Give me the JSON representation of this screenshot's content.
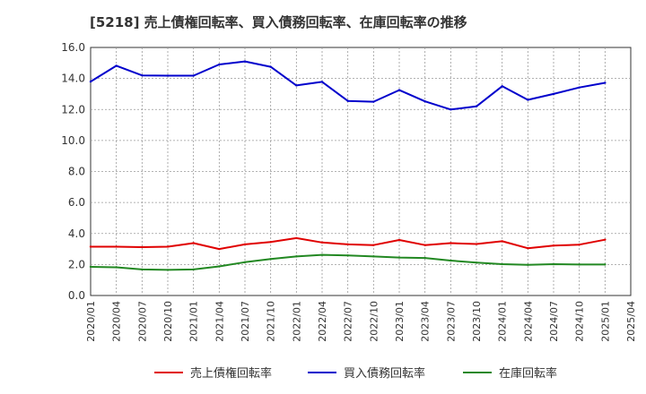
{
  "chart_data": {
    "type": "line",
    "title": "[5218]  売上債権回転率、買入債務回転率、在庫回転率の推移",
    "xlabel": "",
    "ylabel": "",
    "ylim": [
      0,
      16
    ],
    "yticks": [
      "0.0",
      "2.0",
      "4.0",
      "6.0",
      "8.0",
      "10.0",
      "12.0",
      "14.0",
      "16.0"
    ],
    "grid": true,
    "legend_position": "bottom",
    "categories": [
      "2020/01",
      "2020/04",
      "2020/07",
      "2020/10",
      "2021/01",
      "2021/04",
      "2021/07",
      "2021/10",
      "2022/01",
      "2022/04",
      "2022/07",
      "2022/10",
      "2023/01",
      "2023/04",
      "2023/07",
      "2023/10",
      "2024/01",
      "2024/04",
      "2024/07",
      "2024/10",
      "2025/01",
      "2025/04"
    ],
    "series": [
      {
        "name": "売上債権回転率",
        "color": "#e00000",
        "values": [
          3.15,
          3.15,
          3.12,
          3.15,
          3.38,
          3.0,
          3.3,
          3.45,
          3.7,
          3.42,
          3.3,
          3.25,
          3.58,
          3.25,
          3.38,
          3.32,
          3.5,
          3.05,
          3.22,
          3.28,
          3.6,
          null
        ]
      },
      {
        "name": "買入債務回転率",
        "color": "#0000cc",
        "values": [
          13.8,
          14.82,
          14.2,
          14.18,
          14.18,
          14.9,
          15.1,
          14.75,
          13.55,
          13.78,
          12.55,
          12.5,
          13.25,
          12.52,
          12.0,
          12.2,
          13.5,
          12.62,
          13.0,
          13.42,
          13.72,
          null
        ]
      },
      {
        "name": "在庫回転率",
        "color": "#228822",
        "values": [
          1.85,
          1.82,
          1.68,
          1.65,
          1.68,
          1.88,
          2.15,
          2.35,
          2.52,
          2.62,
          2.58,
          2.52,
          2.45,
          2.42,
          2.25,
          2.12,
          2.02,
          1.98,
          2.02,
          2.0,
          2.0,
          null
        ]
      }
    ]
  }
}
